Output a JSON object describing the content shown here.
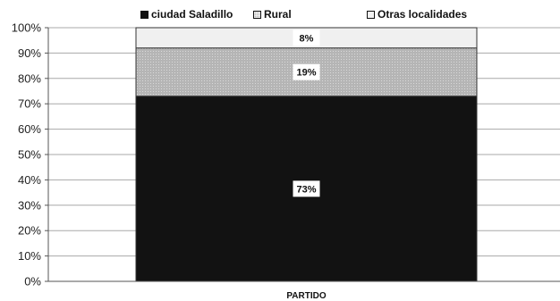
{
  "chart_data": {
    "type": "bar",
    "stacked": true,
    "categories": [
      "PARTIDO"
    ],
    "xlabel": "PARTIDO",
    "ylabel": "",
    "ylim": [
      0,
      100
    ],
    "yticks": [
      "0%",
      "10%",
      "20%",
      "30%",
      "40%",
      "50%",
      "60%",
      "70%",
      "80%",
      "90%",
      "100%"
    ],
    "grid": true,
    "legend_position": "top",
    "series": [
      {
        "name": "ciudad Saladillo",
        "values": [
          73
        ],
        "label": "73%",
        "color": "#121212"
      },
      {
        "name": "Rural",
        "values": [
          19
        ],
        "label": "19%",
        "color": "#bdbdbd"
      },
      {
        "name": "Otras localidades",
        "values": [
          8
        ],
        "label": "8%",
        "color": "#f0f0f0"
      }
    ]
  }
}
